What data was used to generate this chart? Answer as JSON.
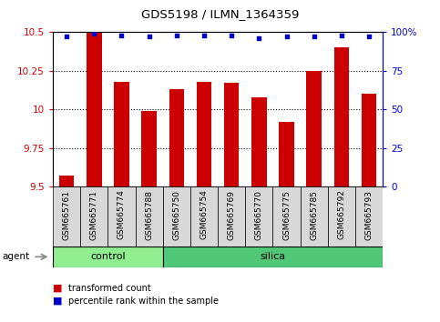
{
  "title": "GDS5198 / ILMN_1364359",
  "categories": [
    "GSM665761",
    "GSM665771",
    "GSM665774",
    "GSM665788",
    "GSM665750",
    "GSM665754",
    "GSM665769",
    "GSM665770",
    "GSM665775",
    "GSM665785",
    "GSM665792",
    "GSM665793"
  ],
  "bar_values": [
    9.57,
    10.5,
    10.18,
    9.99,
    10.13,
    10.18,
    10.17,
    10.08,
    9.92,
    10.25,
    10.4,
    10.1
  ],
  "percentile_values": [
    97,
    99,
    98,
    97,
    98,
    98,
    98,
    96,
    97,
    97,
    98,
    97
  ],
  "bar_color": "#cc0000",
  "percentile_color": "#0000cc",
  "ylim_left": [
    9.5,
    10.5
  ],
  "ylim_right": [
    0,
    100
  ],
  "yticks_left": [
    9.5,
    9.75,
    10.0,
    10.25,
    10.5
  ],
  "yticks_right": [
    0,
    25,
    50,
    75,
    100
  ],
  "ytick_labels_left": [
    "9.5",
    "9.75",
    "10",
    "10.25",
    "10.5"
  ],
  "ytick_labels_right": [
    "0",
    "25",
    "50",
    "75",
    "100%"
  ],
  "n_control": 4,
  "n_silica": 8,
  "control_color": "#90ee90",
  "silica_color": "#50c878",
  "agent_label": "agent",
  "control_label": "control",
  "silica_label": "silica",
  "legend_bar_label": "transformed count",
  "legend_percentile_label": "percentile rank within the sample",
  "bar_width": 0.55,
  "background_color": "#ffffff",
  "plot_bg_color": "#ffffff",
  "left_axis_color": "#cc0000",
  "right_axis_color": "#0000cc",
  "tick_bg_color": "#d8d8d8"
}
